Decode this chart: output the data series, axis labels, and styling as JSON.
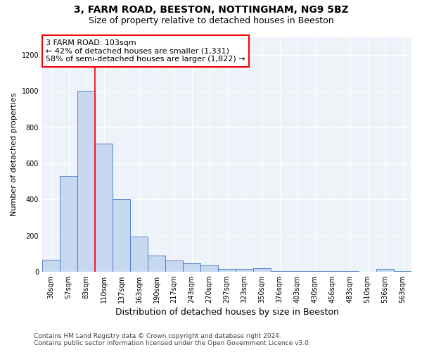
{
  "title1": "3, FARM ROAD, BEESTON, NOTTINGHAM, NG9 5BZ",
  "title2": "Size of property relative to detached houses in Beeston",
  "xlabel": "Distribution of detached houses by size in Beeston",
  "ylabel": "Number of detached properties",
  "categories": [
    "30sqm",
    "57sqm",
    "83sqm",
    "110sqm",
    "137sqm",
    "163sqm",
    "190sqm",
    "217sqm",
    "243sqm",
    "270sqm",
    "297sqm",
    "323sqm",
    "350sqm",
    "376sqm",
    "403sqm",
    "430sqm",
    "456sqm",
    "483sqm",
    "510sqm",
    "536sqm",
    "563sqm"
  ],
  "values": [
    65,
    530,
    1000,
    710,
    400,
    195,
    90,
    60,
    45,
    35,
    15,
    15,
    20,
    5,
    5,
    5,
    2,
    2,
    0,
    15,
    2
  ],
  "bar_color": "#c6d9f1",
  "bar_edge_color": "#4472c4",
  "annotation_text_line1": "3 FARM ROAD: 103sqm",
  "annotation_text_line2": "← 42% of detached houses are smaller (1,331)",
  "annotation_text_line3": "58% of semi-detached houses are larger (1,822) →",
  "annotation_box_color": "white",
  "annotation_box_edge": "red",
  "vline_color": "red",
  "vline_x_index": 2.5,
  "ylim": [
    0,
    1300
  ],
  "yticks": [
    0,
    200,
    400,
    600,
    800,
    1000,
    1200
  ],
  "footnote1": "Contains HM Land Registry data © Crown copyright and database right 2024.",
  "footnote2": "Contains public sector information licensed under the Open Government Licence v3.0.",
  "background_color": "#eef2f9",
  "title1_fontsize": 10,
  "title2_fontsize": 9,
  "xlabel_fontsize": 9,
  "ylabel_fontsize": 8,
  "tick_fontsize": 7,
  "annotation_fontsize": 8,
  "footnote_fontsize": 6.5
}
